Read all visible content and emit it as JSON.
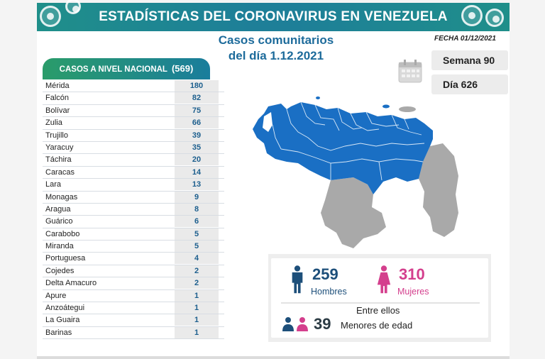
{
  "header": {
    "title": "ESTADÍSTICAS DEL CORONAVIRUS EN VENEZUELA",
    "subtitle_line1": "Casos comunitarios",
    "subtitle_line2": "del día 1.12.2021",
    "fecha": "FECHA 01/12/2021"
  },
  "badges": {
    "semana": "Semana 90",
    "dia": "Día 626"
  },
  "national": {
    "label": "CASOS A NIVEL NACIONAL",
    "count": "(569)",
    "rows": [
      {
        "state": "Mérida",
        "cases": "180"
      },
      {
        "state": "Falcón",
        "cases": "82"
      },
      {
        "state": "Bolívar",
        "cases": "75"
      },
      {
        "state": "Zulia",
        "cases": "66"
      },
      {
        "state": "Trujillo",
        "cases": "39"
      },
      {
        "state": "Yaracuy",
        "cases": "35"
      },
      {
        "state": "Táchira",
        "cases": "20"
      },
      {
        "state": "Caracas",
        "cases": "14"
      },
      {
        "state": "Lara",
        "cases": "13"
      },
      {
        "state": "Monagas",
        "cases": "9"
      },
      {
        "state": "Aragua",
        "cases": "8"
      },
      {
        "state": "Guárico",
        "cases": "6"
      },
      {
        "state": "Carabobo",
        "cases": "5"
      },
      {
        "state": "Miranda",
        "cases": "5"
      },
      {
        "state": "Portuguesa",
        "cases": "4"
      },
      {
        "state": "Cojedes",
        "cases": "2"
      },
      {
        "state": "Delta Amacuro",
        "cases": "2"
      },
      {
        "state": "Apure",
        "cases": "1"
      },
      {
        "state": "Anzoátegui",
        "cases": "1"
      },
      {
        "state": "La Guaira",
        "cases": "1"
      },
      {
        "state": "Barinas",
        "cases": "1"
      }
    ]
  },
  "stats": {
    "hombres_num": "259",
    "hombres_label": "Hombres",
    "mujeres_num": "310",
    "mujeres_label": "Mujeres",
    "entre_ellos": "Entre ellos",
    "menores_num": "39",
    "menores_label": "Menores de edad"
  },
  "colors": {
    "banner": "#1e7f98",
    "map_blue": "#1a6fc4",
    "map_gray": "#a9a9a9",
    "male": "#1d4f7a",
    "female": "#d43f8d",
    "title_blue": "#1d6b9b"
  },
  "icons": [
    "virus-icon",
    "calendar-icon",
    "male-icon",
    "female-icon",
    "family-icon"
  ]
}
